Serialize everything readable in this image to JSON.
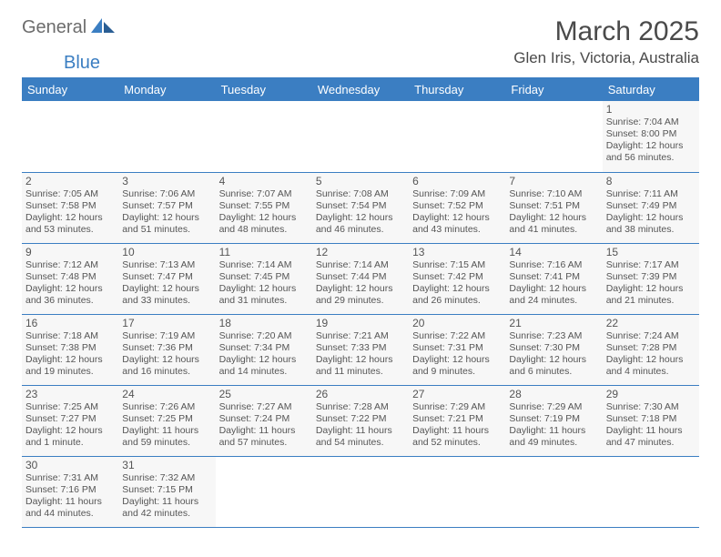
{
  "brand": {
    "part1": "General",
    "part2": "Blue"
  },
  "title": "March 2025",
  "location": "Glen Iris, Victoria, Australia",
  "colors": {
    "accent": "#3b7ec2",
    "cell_bg": "#f7f7f7",
    "page_bg": "#ffffff",
    "text": "#4a4a4a"
  },
  "weekdays": [
    "Sunday",
    "Monday",
    "Tuesday",
    "Wednesday",
    "Thursday",
    "Friday",
    "Saturday"
  ],
  "weeks": [
    [
      null,
      null,
      null,
      null,
      null,
      null,
      {
        "d": "1",
        "rise": "7:04 AM",
        "set": "8:00 PM",
        "day": "12 hours and 56 minutes."
      }
    ],
    [
      {
        "d": "2",
        "rise": "7:05 AM",
        "set": "7:58 PM",
        "day": "12 hours and 53 minutes."
      },
      {
        "d": "3",
        "rise": "7:06 AM",
        "set": "7:57 PM",
        "day": "12 hours and 51 minutes."
      },
      {
        "d": "4",
        "rise": "7:07 AM",
        "set": "7:55 PM",
        "day": "12 hours and 48 minutes."
      },
      {
        "d": "5",
        "rise": "7:08 AM",
        "set": "7:54 PM",
        "day": "12 hours and 46 minutes."
      },
      {
        "d": "6",
        "rise": "7:09 AM",
        "set": "7:52 PM",
        "day": "12 hours and 43 minutes."
      },
      {
        "d": "7",
        "rise": "7:10 AM",
        "set": "7:51 PM",
        "day": "12 hours and 41 minutes."
      },
      {
        "d": "8",
        "rise": "7:11 AM",
        "set": "7:49 PM",
        "day": "12 hours and 38 minutes."
      }
    ],
    [
      {
        "d": "9",
        "rise": "7:12 AM",
        "set": "7:48 PM",
        "day": "12 hours and 36 minutes."
      },
      {
        "d": "10",
        "rise": "7:13 AM",
        "set": "7:47 PM",
        "day": "12 hours and 33 minutes."
      },
      {
        "d": "11",
        "rise": "7:14 AM",
        "set": "7:45 PM",
        "day": "12 hours and 31 minutes."
      },
      {
        "d": "12",
        "rise": "7:14 AM",
        "set": "7:44 PM",
        "day": "12 hours and 29 minutes."
      },
      {
        "d": "13",
        "rise": "7:15 AM",
        "set": "7:42 PM",
        "day": "12 hours and 26 minutes."
      },
      {
        "d": "14",
        "rise": "7:16 AM",
        "set": "7:41 PM",
        "day": "12 hours and 24 minutes."
      },
      {
        "d": "15",
        "rise": "7:17 AM",
        "set": "7:39 PM",
        "day": "12 hours and 21 minutes."
      }
    ],
    [
      {
        "d": "16",
        "rise": "7:18 AM",
        "set": "7:38 PM",
        "day": "12 hours and 19 minutes."
      },
      {
        "d": "17",
        "rise": "7:19 AM",
        "set": "7:36 PM",
        "day": "12 hours and 16 minutes."
      },
      {
        "d": "18",
        "rise": "7:20 AM",
        "set": "7:34 PM",
        "day": "12 hours and 14 minutes."
      },
      {
        "d": "19",
        "rise": "7:21 AM",
        "set": "7:33 PM",
        "day": "12 hours and 11 minutes."
      },
      {
        "d": "20",
        "rise": "7:22 AM",
        "set": "7:31 PM",
        "day": "12 hours and 9 minutes."
      },
      {
        "d": "21",
        "rise": "7:23 AM",
        "set": "7:30 PM",
        "day": "12 hours and 6 minutes."
      },
      {
        "d": "22",
        "rise": "7:24 AM",
        "set": "7:28 PM",
        "day": "12 hours and 4 minutes."
      }
    ],
    [
      {
        "d": "23",
        "rise": "7:25 AM",
        "set": "7:27 PM",
        "day": "12 hours and 1 minute."
      },
      {
        "d": "24",
        "rise": "7:26 AM",
        "set": "7:25 PM",
        "day": "11 hours and 59 minutes."
      },
      {
        "d": "25",
        "rise": "7:27 AM",
        "set": "7:24 PM",
        "day": "11 hours and 57 minutes."
      },
      {
        "d": "26",
        "rise": "7:28 AM",
        "set": "7:22 PM",
        "day": "11 hours and 54 minutes."
      },
      {
        "d": "27",
        "rise": "7:29 AM",
        "set": "7:21 PM",
        "day": "11 hours and 52 minutes."
      },
      {
        "d": "28",
        "rise": "7:29 AM",
        "set": "7:19 PM",
        "day": "11 hours and 49 minutes."
      },
      {
        "d": "29",
        "rise": "7:30 AM",
        "set": "7:18 PM",
        "day": "11 hours and 47 minutes."
      }
    ],
    [
      {
        "d": "30",
        "rise": "7:31 AM",
        "set": "7:16 PM",
        "day": "11 hours and 44 minutes."
      },
      {
        "d": "31",
        "rise": "7:32 AM",
        "set": "7:15 PM",
        "day": "11 hours and 42 minutes."
      },
      null,
      null,
      null,
      null,
      null
    ]
  ],
  "labels": {
    "sunrise": "Sunrise:",
    "sunset": "Sunset:",
    "daylight": "Daylight:"
  }
}
